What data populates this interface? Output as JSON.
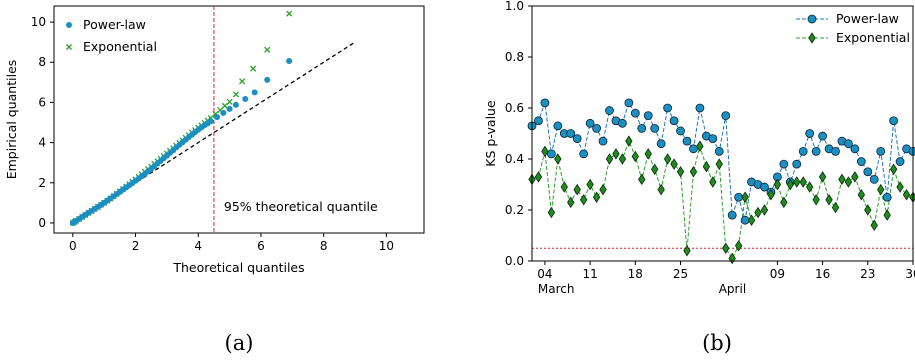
{
  "colors": {
    "powerlaw": "#1f77b4",
    "powerlaw_marker": "#1a8fc2",
    "exponential": "#2ca02c",
    "exponential_marker": "#1e8c1e",
    "reference_line": "#000000",
    "threshold_line": "#d62728"
  },
  "chart_data": [
    {
      "type": "scatter",
      "caption": "(a)",
      "xlabel": "Theoretical quantiles",
      "ylabel": "Empirical quantiles",
      "xlim": [
        -0.6,
        11.2
      ],
      "ylim": [
        -0.5,
        10.8
      ],
      "xticks": [
        0,
        2,
        4,
        6,
        8,
        10
      ],
      "yticks": [
        0,
        2,
        4,
        6,
        8,
        10
      ],
      "grid": false,
      "legend": "top-left",
      "annotation": {
        "text": "95% theoretical quantile",
        "x": 4.5,
        "line": "vertical dashed"
      },
      "reference_line": {
        "style": "dashed",
        "x": [
          0,
          9
        ],
        "y": [
          0,
          9
        ]
      },
      "series": [
        {
          "name": "Power-law",
          "marker": "circle",
          "x": [
            0.0,
            0.05,
            0.1,
            0.2,
            0.3,
            0.4,
            0.5,
            0.6,
            0.7,
            0.8,
            0.9,
            1.0,
            1.1,
            1.2,
            1.3,
            1.4,
            1.5,
            1.6,
            1.7,
            1.8,
            1.9,
            2.0,
            2.1,
            2.2,
            2.3,
            2.4,
            2.5,
            2.6,
            2.7,
            2.8,
            2.9,
            3.0,
            3.1,
            3.2,
            3.3,
            3.4,
            3.5,
            3.6,
            3.7,
            3.8,
            3.9,
            4.0,
            4.1,
            4.2,
            4.3,
            4.4,
            4.6,
            4.8,
            5.0,
            5.2,
            5.5,
            5.8,
            6.2,
            6.9
          ],
          "y": [
            0.0,
            0.05,
            0.1,
            0.2,
            0.3,
            0.4,
            0.5,
            0.6,
            0.7,
            0.8,
            0.9,
            1.0,
            1.11,
            1.22,
            1.33,
            1.44,
            1.55,
            1.66,
            1.77,
            1.88,
            1.99,
            2.1,
            2.21,
            2.33,
            2.45,
            2.57,
            2.7,
            2.83,
            2.96,
            3.09,
            3.22,
            3.36,
            3.49,
            3.62,
            3.76,
            3.89,
            4.02,
            4.15,
            4.28,
            4.4,
            4.52,
            4.64,
            4.75,
            4.86,
            4.96,
            5.06,
            5.27,
            5.48,
            5.68,
            5.88,
            6.17,
            6.5,
            7.12,
            8.06
          ]
        },
        {
          "name": "Exponential",
          "marker": "x",
          "x": [
            0.0,
            0.05,
            0.1,
            0.2,
            0.3,
            0.4,
            0.5,
            0.6,
            0.7,
            0.8,
            0.9,
            1.0,
            1.1,
            1.2,
            1.3,
            1.4,
            1.5,
            1.6,
            1.7,
            1.8,
            1.9,
            2.0,
            2.1,
            2.2,
            2.3,
            2.4,
            2.5,
            2.6,
            2.7,
            2.8,
            2.9,
            3.0,
            3.1,
            3.2,
            3.3,
            3.4,
            3.5,
            3.6,
            3.7,
            3.8,
            3.9,
            4.0,
            4.1,
            4.2,
            4.3,
            4.4,
            4.55,
            4.7,
            4.85,
            5.0,
            5.2,
            5.4,
            5.75,
            6.2,
            6.9
          ],
          "y": [
            0.0,
            0.05,
            0.1,
            0.2,
            0.3,
            0.4,
            0.5,
            0.6,
            0.7,
            0.8,
            0.9,
            1.0,
            1.11,
            1.22,
            1.33,
            1.45,
            1.57,
            1.69,
            1.81,
            1.93,
            2.05,
            2.17,
            2.29,
            2.42,
            2.55,
            2.68,
            2.81,
            2.94,
            3.07,
            3.2,
            3.33,
            3.46,
            3.59,
            3.72,
            3.85,
            3.98,
            4.11,
            4.24,
            4.37,
            4.5,
            4.62,
            4.74,
            4.86,
            4.98,
            5.1,
            5.22,
            5.42,
            5.62,
            5.83,
            6.03,
            6.4,
            7.05,
            7.68,
            8.62,
            10.42
          ]
        }
      ]
    },
    {
      "type": "line",
      "caption": "(b)",
      "xlabel": "",
      "ylabel": "KS p-value",
      "ylim": [
        0.0,
        1.0
      ],
      "yticks": [
        "0.0",
        "0.2",
        "0.4",
        "0.6",
        "0.8",
        "1.0"
      ],
      "xlim": [
        "2018-03-02",
        "2018-04-30"
      ],
      "xticks": [
        {
          "date": "2018-03-04",
          "label": "04"
        },
        {
          "date": "2018-03-11",
          "label": "11"
        },
        {
          "date": "2018-03-18",
          "label": "18"
        },
        {
          "date": "2018-03-25",
          "label": "25"
        },
        {
          "date": "2018-04-09",
          "label": "09"
        },
        {
          "date": "2018-04-16",
          "label": "16"
        },
        {
          "date": "2018-04-23",
          "label": "23"
        },
        {
          "date": "2018-04-30",
          "label": "30"
        }
      ],
      "month_labels": [
        {
          "date": "2018-03-04",
          "label": "March"
        },
        {
          "date": "2018-04-01",
          "label": "April"
        }
      ],
      "grid": false,
      "legend": "top-right",
      "threshold": {
        "y": 0.05,
        "style": "dotted"
      },
      "series": [
        {
          "name": "Power-law",
          "marker": "circle",
          "line": "dashed",
          "x": [
            "2018-03-02",
            "2018-03-03",
            "2018-03-04",
            "2018-03-05",
            "2018-03-06",
            "2018-03-07",
            "2018-03-08",
            "2018-03-09",
            "2018-03-10",
            "2018-03-11",
            "2018-03-12",
            "2018-03-13",
            "2018-03-14",
            "2018-03-15",
            "2018-03-16",
            "2018-03-17",
            "2018-03-18",
            "2018-03-19",
            "2018-03-20",
            "2018-03-21",
            "2018-03-22",
            "2018-03-23",
            "2018-03-24",
            "2018-03-25",
            "2018-03-26",
            "2018-03-27",
            "2018-03-28",
            "2018-03-29",
            "2018-03-30",
            "2018-03-31",
            "2018-04-01",
            "2018-04-02",
            "2018-04-03",
            "2018-04-04",
            "2018-04-05",
            "2018-04-06",
            "2018-04-07",
            "2018-04-08",
            "2018-04-09",
            "2018-04-10",
            "2018-04-11",
            "2018-04-12",
            "2018-04-13",
            "2018-04-14",
            "2018-04-15",
            "2018-04-16",
            "2018-04-17",
            "2018-04-18",
            "2018-04-19",
            "2018-04-20",
            "2018-04-21",
            "2018-04-22",
            "2018-04-23",
            "2018-04-24",
            "2018-04-25",
            "2018-04-26",
            "2018-04-27",
            "2018-04-28",
            "2018-04-29",
            "2018-04-30"
          ],
          "y": [
            0.53,
            0.55,
            0.62,
            0.42,
            0.53,
            0.5,
            0.5,
            0.48,
            0.42,
            0.54,
            0.52,
            0.47,
            0.59,
            0.55,
            0.54,
            0.62,
            0.58,
            0.52,
            0.57,
            0.52,
            0.46,
            0.6,
            0.55,
            0.51,
            0.47,
            0.44,
            0.6,
            0.49,
            0.48,
            0.43,
            0.57,
            0.18,
            0.25,
            0.16,
            0.31,
            0.3,
            0.29,
            0.27,
            0.33,
            0.38,
            0.31,
            0.38,
            0.43,
            0.5,
            0.43,
            0.49,
            0.44,
            0.43,
            0.47,
            0.46,
            0.44,
            0.39,
            0.35,
            0.32,
            0.43,
            0.25,
            0.55,
            0.39,
            0.44,
            0.43
          ]
        },
        {
          "name": "Exponential",
          "marker": "diamond",
          "line": "dashed",
          "x": [
            "2018-03-02",
            "2018-03-03",
            "2018-03-04",
            "2018-03-05",
            "2018-03-06",
            "2018-03-07",
            "2018-03-08",
            "2018-03-09",
            "2018-03-10",
            "2018-03-11",
            "2018-03-12",
            "2018-03-13",
            "2018-03-14",
            "2018-03-15",
            "2018-03-16",
            "2018-03-17",
            "2018-03-18",
            "2018-03-19",
            "2018-03-20",
            "2018-03-21",
            "2018-03-22",
            "2018-03-23",
            "2018-03-24",
            "2018-03-25",
            "2018-03-26",
            "2018-03-27",
            "2018-03-28",
            "2018-03-29",
            "2018-03-30",
            "2018-03-31",
            "2018-04-01",
            "2018-04-02",
            "2018-04-03",
            "2018-04-04",
            "2018-04-05",
            "2018-04-06",
            "2018-04-07",
            "2018-04-08",
            "2018-04-09",
            "2018-04-10",
            "2018-04-11",
            "2018-04-12",
            "2018-04-13",
            "2018-04-14",
            "2018-04-15",
            "2018-04-16",
            "2018-04-17",
            "2018-04-18",
            "2018-04-19",
            "2018-04-20",
            "2018-04-21",
            "2018-04-22",
            "2018-04-23",
            "2018-04-24",
            "2018-04-25",
            "2018-04-26",
            "2018-04-27",
            "2018-04-28",
            "2018-04-29",
            "2018-04-30"
          ],
          "y": [
            0.32,
            0.33,
            0.43,
            0.19,
            0.4,
            0.29,
            0.23,
            0.28,
            0.24,
            0.3,
            0.25,
            0.28,
            0.4,
            0.42,
            0.4,
            0.47,
            0.41,
            0.32,
            0.42,
            0.36,
            0.28,
            0.4,
            0.38,
            0.35,
            0.04,
            0.35,
            0.45,
            0.37,
            0.31,
            0.38,
            0.05,
            0.01,
            0.06,
            0.25,
            0.16,
            0.19,
            0.2,
            0.26,
            0.3,
            0.23,
            0.3,
            0.31,
            0.31,
            0.29,
            0.24,
            0.33,
            0.24,
            0.21,
            0.32,
            0.31,
            0.33,
            0.26,
            0.2,
            0.14,
            0.28,
            0.18,
            0.36,
            0.29,
            0.26,
            0.25
          ]
        }
      ]
    }
  ]
}
